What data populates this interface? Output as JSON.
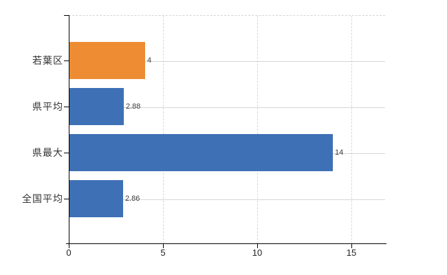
{
  "chart_data": {
    "type": "bar",
    "orientation": "horizontal",
    "title": "",
    "xlabel": "",
    "ylabel": "",
    "categories": [
      "若葉区",
      "県平均",
      "県最大",
      "全国平均"
    ],
    "values": [
      4,
      2.88,
      14,
      2.86
    ],
    "value_labels": [
      "4",
      "2.88",
      "14",
      "2.86"
    ],
    "bar_colors": [
      "#ee8c33",
      "#3e70b5",
      "#3e70b5",
      "#3e70b5"
    ],
    "x_ticks": [
      0,
      5,
      10,
      15
    ],
    "x_tick_labels": [
      "0",
      "5",
      "10",
      "15"
    ],
    "xlim": [
      0,
      16.8
    ],
    "grid": true,
    "legend": "none"
  },
  "colors": {
    "highlight_bar": "#ee8c33",
    "default_bar": "#3e70b5",
    "gridline": "#d6d6d6",
    "axis": "#000000",
    "value_text": "#3d3d3d",
    "category_text": "#333333",
    "tick_text": "#222222",
    "background": "#ffffff"
  }
}
